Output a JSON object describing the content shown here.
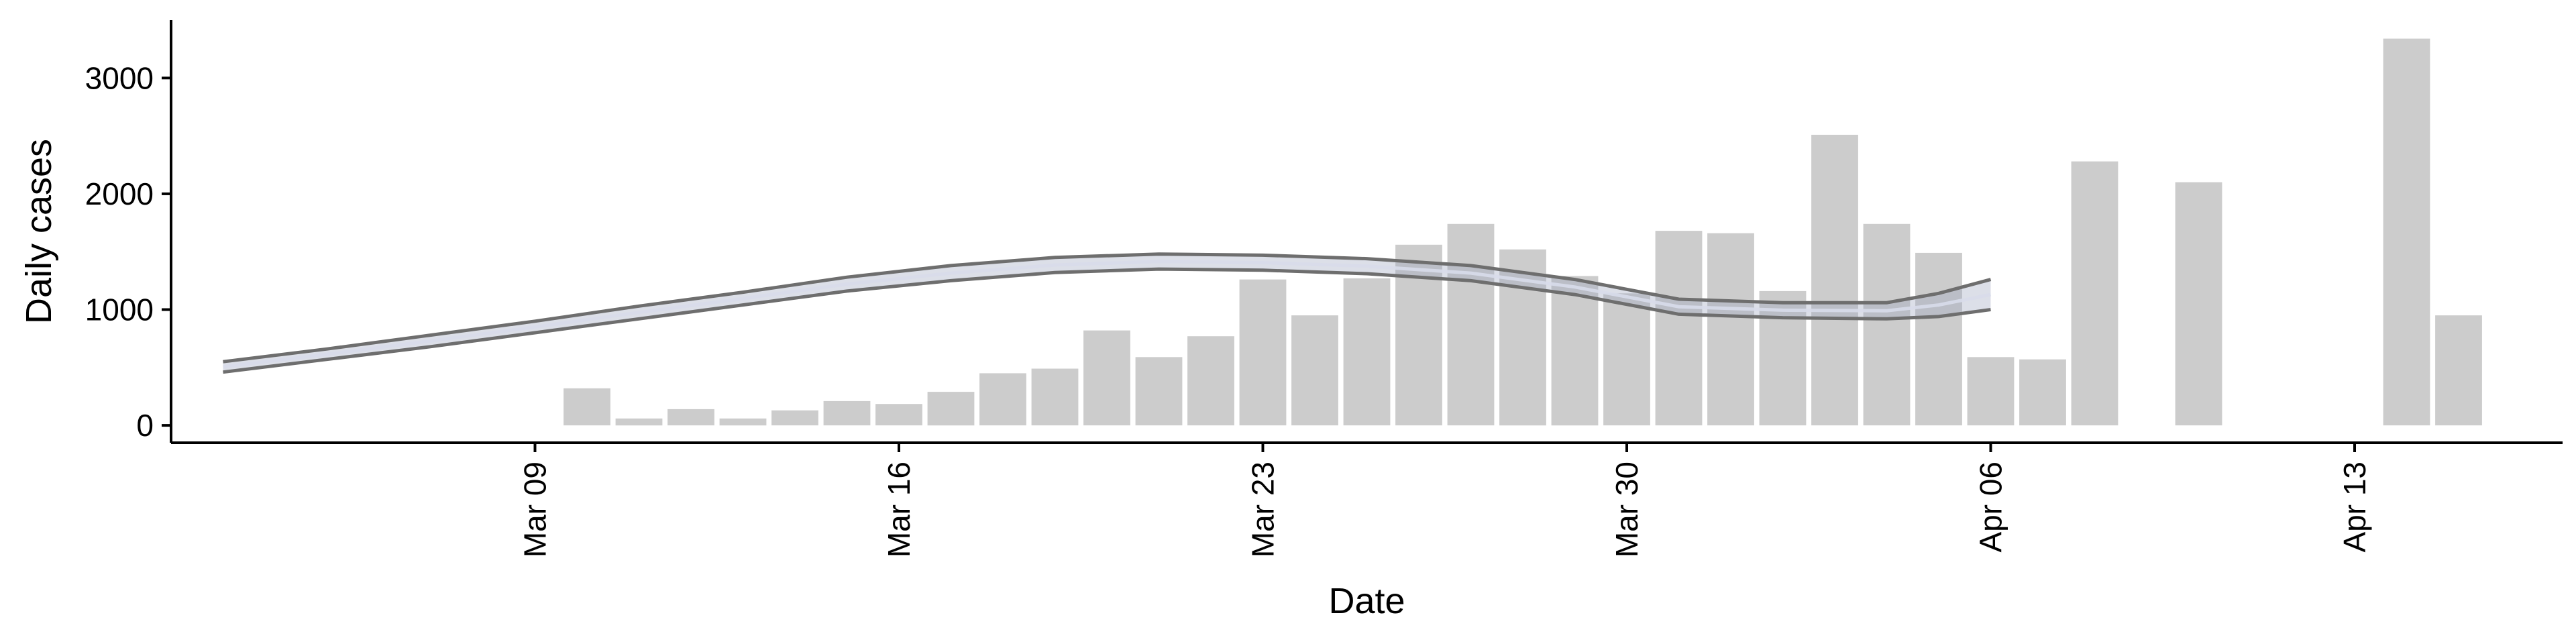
{
  "chart_data": {
    "type": "bar",
    "title": "",
    "xlabel": "Date",
    "ylabel": "Daily cases",
    "x_tick_labels": [
      "Mar 09",
      "Mar 16",
      "Mar 23",
      "Mar 30",
      "Apr 06",
      "Apr 13"
    ],
    "x_tick_dates": [
      "2020-03-09",
      "2020-03-16",
      "2020-03-23",
      "2020-03-30",
      "2020-04-06",
      "2020-04-13"
    ],
    "xlim": [
      "2020-03-02",
      "2020-04-17"
    ],
    "y_ticks": [
      0,
      1000,
      2000,
      3000
    ],
    "ylim": [
      -150,
      3500
    ],
    "grid": false,
    "legend": "none",
    "bars": {
      "color": "#cccccc",
      "points": [
        {
          "date": "2020-03-10",
          "value": 320
        },
        {
          "date": "2020-03-11",
          "value": 60
        },
        {
          "date": "2020-03-12",
          "value": 140
        },
        {
          "date": "2020-03-13",
          "value": 60
        },
        {
          "date": "2020-03-14",
          "value": 130
        },
        {
          "date": "2020-03-15",
          "value": 210
        },
        {
          "date": "2020-03-16",
          "value": 185
        },
        {
          "date": "2020-03-17",
          "value": 290
        },
        {
          "date": "2020-03-18",
          "value": 450
        },
        {
          "date": "2020-03-19",
          "value": 490
        },
        {
          "date": "2020-03-20",
          "value": 820
        },
        {
          "date": "2020-03-21",
          "value": 590
        },
        {
          "date": "2020-03-22",
          "value": 770
        },
        {
          "date": "2020-03-23",
          "value": 1260
        },
        {
          "date": "2020-03-24",
          "value": 950
        },
        {
          "date": "2020-03-25",
          "value": 1270
        },
        {
          "date": "2020-03-26",
          "value": 1560
        },
        {
          "date": "2020-03-27",
          "value": 1740
        },
        {
          "date": "2020-03-28",
          "value": 1520
        },
        {
          "date": "2020-03-29",
          "value": 1290
        },
        {
          "date": "2020-03-30",
          "value": 1140
        },
        {
          "date": "2020-03-31",
          "value": 1680
        },
        {
          "date": "2020-04-01",
          "value": 1660
        },
        {
          "date": "2020-04-02",
          "value": 1160
        },
        {
          "date": "2020-04-03",
          "value": 2510
        },
        {
          "date": "2020-04-04",
          "value": 1740
        },
        {
          "date": "2020-04-05",
          "value": 1490
        },
        {
          "date": "2020-04-06",
          "value": 590
        },
        {
          "date": "2020-04-07",
          "value": 570
        },
        {
          "date": "2020-04-08",
          "value": 2280
        },
        {
          "date": "2020-04-10",
          "value": 2100
        },
        {
          "date": "2020-04-14",
          "value": 3340
        },
        {
          "date": "2020-04-15",
          "value": 950
        }
      ]
    },
    "trend": {
      "band_color": "#9aa3bd",
      "line_color": "#6e6e6e",
      "points": [
        {
          "date": "2020-03-03",
          "lower": 460,
          "upper": 550,
          "center": 505
        },
        {
          "date": "2020-03-05",
          "lower": 570,
          "upper": 660,
          "center": 615
        },
        {
          "date": "2020-03-07",
          "lower": 680,
          "upper": 780,
          "center": 730
        },
        {
          "date": "2020-03-09",
          "lower": 800,
          "upper": 900,
          "center": 850
        },
        {
          "date": "2020-03-11",
          "lower": 920,
          "upper": 1030,
          "center": 975
        },
        {
          "date": "2020-03-13",
          "lower": 1040,
          "upper": 1150,
          "center": 1095
        },
        {
          "date": "2020-03-15",
          "lower": 1160,
          "upper": 1280,
          "center": 1220
        },
        {
          "date": "2020-03-17",
          "lower": 1250,
          "upper": 1380,
          "center": 1315
        },
        {
          "date": "2020-03-19",
          "lower": 1320,
          "upper": 1450,
          "center": 1385
        },
        {
          "date": "2020-03-21",
          "lower": 1350,
          "upper": 1480,
          "center": 1415
        },
        {
          "date": "2020-03-23",
          "lower": 1340,
          "upper": 1470,
          "center": 1405
        },
        {
          "date": "2020-03-25",
          "lower": 1310,
          "upper": 1440,
          "center": 1375
        },
        {
          "date": "2020-03-27",
          "lower": 1250,
          "upper": 1380,
          "center": 1315
        },
        {
          "date": "2020-03-29",
          "lower": 1130,
          "upper": 1260,
          "center": 1195
        },
        {
          "date": "2020-03-31",
          "lower": 960,
          "upper": 1090,
          "center": 1025
        },
        {
          "date": "2020-04-02",
          "lower": 930,
          "upper": 1060,
          "center": 995
        },
        {
          "date": "2020-04-04",
          "lower": 920,
          "upper": 1060,
          "center": 990
        },
        {
          "date": "2020-04-05",
          "lower": 940,
          "upper": 1140,
          "center": 1040
        },
        {
          "date": "2020-04-06",
          "lower": 1000,
          "upper": 1260,
          "center": 1130
        }
      ]
    }
  }
}
